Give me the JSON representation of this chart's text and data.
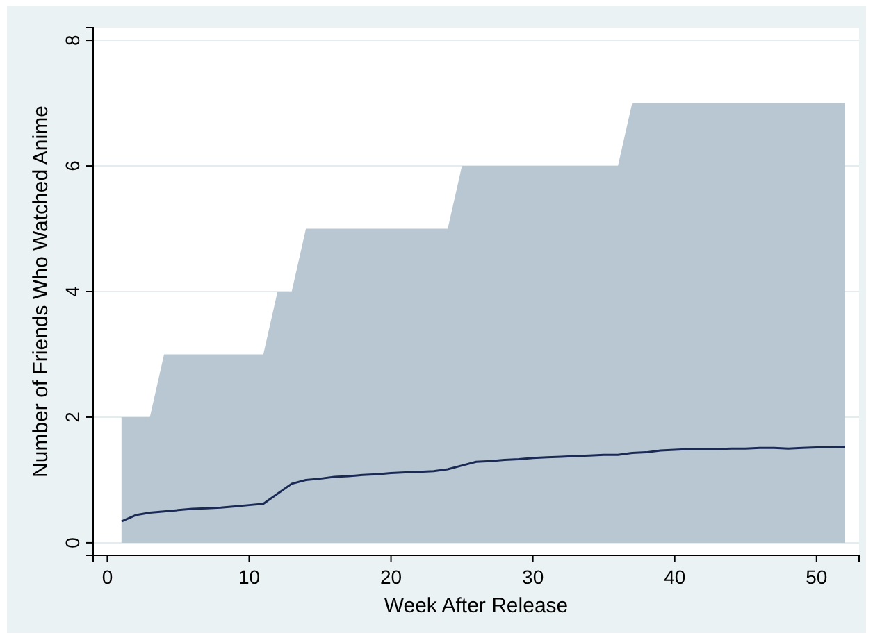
{
  "chart_data": {
    "type": "line",
    "xlabel": "Week After Release",
    "ylabel": "Number of Friends Who Watched Anime",
    "x": [
      1,
      2,
      3,
      4,
      5,
      6,
      7,
      8,
      9,
      10,
      11,
      12,
      13,
      14,
      15,
      16,
      17,
      18,
      19,
      20,
      21,
      22,
      23,
      24,
      25,
      26,
      27,
      28,
      29,
      30,
      31,
      32,
      33,
      34,
      35,
      36,
      37,
      38,
      39,
      40,
      41,
      42,
      43,
      44,
      45,
      46,
      47,
      48,
      49,
      50,
      51,
      52
    ],
    "series": [
      {
        "type": "area",
        "color": "#b9c7d3",
        "values": [
          2,
          2,
          2,
          3,
          3,
          3,
          3,
          3,
          3,
          3,
          3,
          4,
          4,
          5,
          5,
          5,
          5,
          5,
          5,
          5,
          5,
          5,
          5,
          5,
          6,
          6,
          6,
          6,
          6,
          6,
          6,
          6,
          6,
          6,
          6,
          6,
          7,
          7,
          7,
          7,
          7,
          7,
          7,
          7,
          7,
          7,
          7,
          7,
          7,
          7,
          7,
          7
        ]
      },
      {
        "color": "#1a2a55",
        "values": [
          0.34,
          0.44,
          0.48,
          0.5,
          0.52,
          0.54,
          0.55,
          0.56,
          0.58,
          0.6,
          0.62,
          0.78,
          0.94,
          1.0,
          1.02,
          1.05,
          1.06,
          1.08,
          1.09,
          1.11,
          1.12,
          1.13,
          1.14,
          1.17,
          1.23,
          1.29,
          1.3,
          1.32,
          1.33,
          1.35,
          1.36,
          1.37,
          1.38,
          1.39,
          1.4,
          1.4,
          1.43,
          1.44,
          1.47,
          1.48,
          1.49,
          1.49,
          1.49,
          1.5,
          1.5,
          1.51,
          1.51,
          1.5,
          1.51,
          1.52,
          1.52,
          1.53
        ]
      }
    ],
    "xlim": [
      -1,
      53
    ],
    "xticks": [
      0,
      10,
      20,
      30,
      40,
      50
    ],
    "ylim": [
      -0.2,
      8.2
    ],
    "yticks": [
      0,
      2,
      4,
      6,
      8
    ],
    "grid": "y",
    "marker": "none",
    "line_style": "solid"
  }
}
